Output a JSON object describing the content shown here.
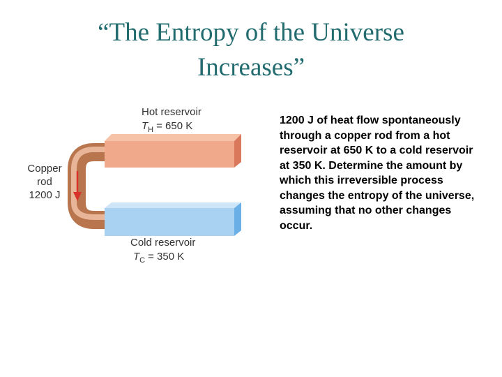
{
  "title": "“The Entropy of the Universe Increases”",
  "diagram": {
    "hot_reservoir": {
      "label": "Hot reservoir",
      "symbol": "T",
      "subscript": "H",
      "value": "= 650 K"
    },
    "cold_reservoir": {
      "label": "Cold reservoir",
      "symbol": "T",
      "subscript": "C",
      "value": "= 350 K"
    },
    "rod": {
      "lines": [
        "Copper",
        "rod",
        "1200 J"
      ]
    }
  },
  "body": "1200 J of heat flow spontaneously through a copper rod from a hot reservoir at 650 K to a cold reservoir at 350 K. Determine the amount by which this irreversible process changes the entropy of the universe, assuming that no other changes occur."
}
